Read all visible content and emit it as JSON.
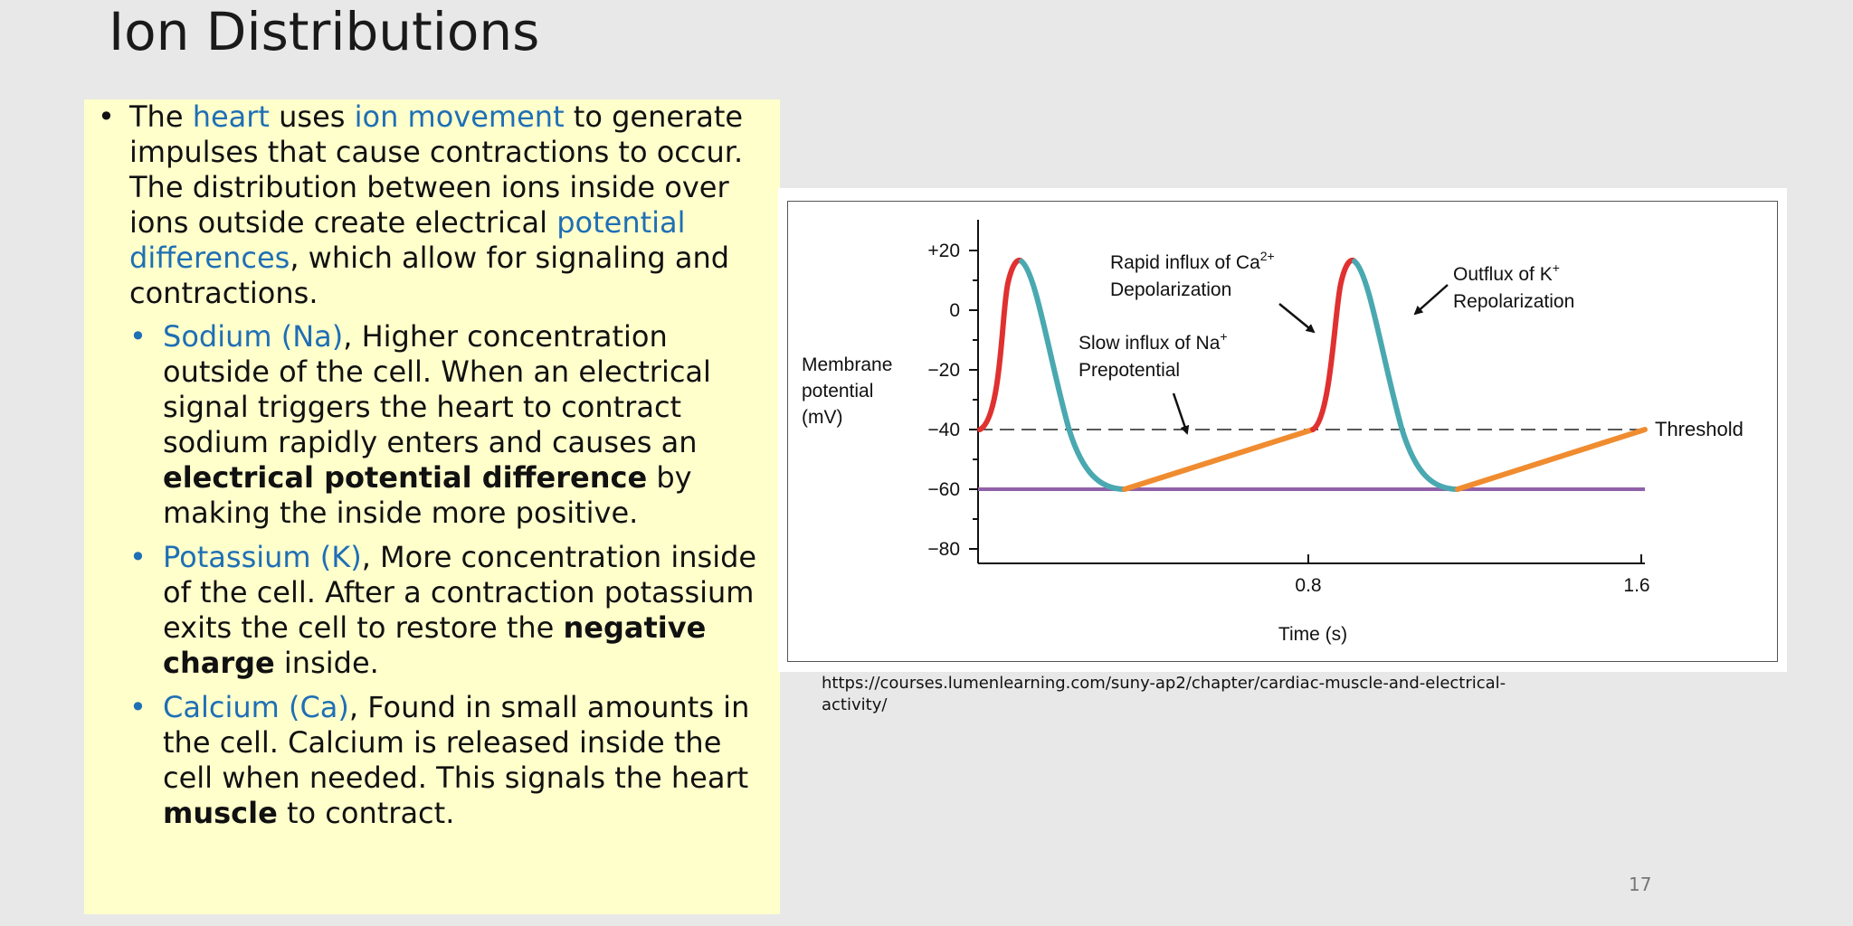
{
  "slide": {
    "title": "Ion Distributions",
    "page_number": "17",
    "source_url": "https://courses.lumenlearning.com/suny-ap2/chapter/cardiac-muscle-and-electrical-activity/"
  },
  "main_bullet": {
    "bullet": "•",
    "t1": "The ",
    "heart": "heart",
    "t2": " uses ",
    "ion_movement": "ion movement",
    "t3": " to generate impulses that cause contractions to occur. The distribution between ions inside over ions outside create electrical ",
    "potential_differences": "potential differences",
    "t4": ", which allow for signaling and contractions."
  },
  "sub_bullets": [
    {
      "bullet": "•",
      "name": "Sodium (Na)",
      "t1": ", Higher concentration outside of the cell. When an electrical signal triggers the heart to contract sodium rapidly enters and causes an ",
      "bold": "electrical potential difference",
      "t2": " by making the inside more positive."
    },
    {
      "bullet": "•",
      "name": "Potassium (K)",
      "t1": ", More concentration inside of the cell. After a contraction potassium exits the cell to restore the ",
      "bold": "negative charge",
      "t2": " inside."
    },
    {
      "bullet": "•",
      "name": "Calcium (Ca)",
      "t1": ", Found in small amounts in the cell. Calcium is released inside the cell when needed. This signals the heart ",
      "bold": "muscle",
      "t2": " to contract."
    }
  ],
  "figure": {
    "ylabel_line1": "Membrane",
    "ylabel_line2": "potential",
    "ylabel_line3": "(mV)",
    "xlabel": "Time (s)",
    "y_ticks": [
      "+20",
      "0",
      "−20",
      "−40",
      "−60",
      "−80"
    ],
    "x_ticks": [
      "0.8",
      "1.6"
    ],
    "threshold_label": "Threshold",
    "ann_ca_line1": "Rapid influx of Ca",
    "ann_ca_sup": "2+",
    "ann_ca_line2": "Depolarization",
    "ann_k_line1": "Outflux of K",
    "ann_k_sup": "+",
    "ann_k_line2": "Repolarization",
    "ann_na_line1": "Slow influx of Na",
    "ann_na_sup": "+",
    "ann_na_line2": "Prepotential",
    "colors": {
      "depolarization": "#e03030",
      "repolarization": "#4aa8b0",
      "prepotential": "#f08c30",
      "resting": "#9060a8"
    }
  }
}
